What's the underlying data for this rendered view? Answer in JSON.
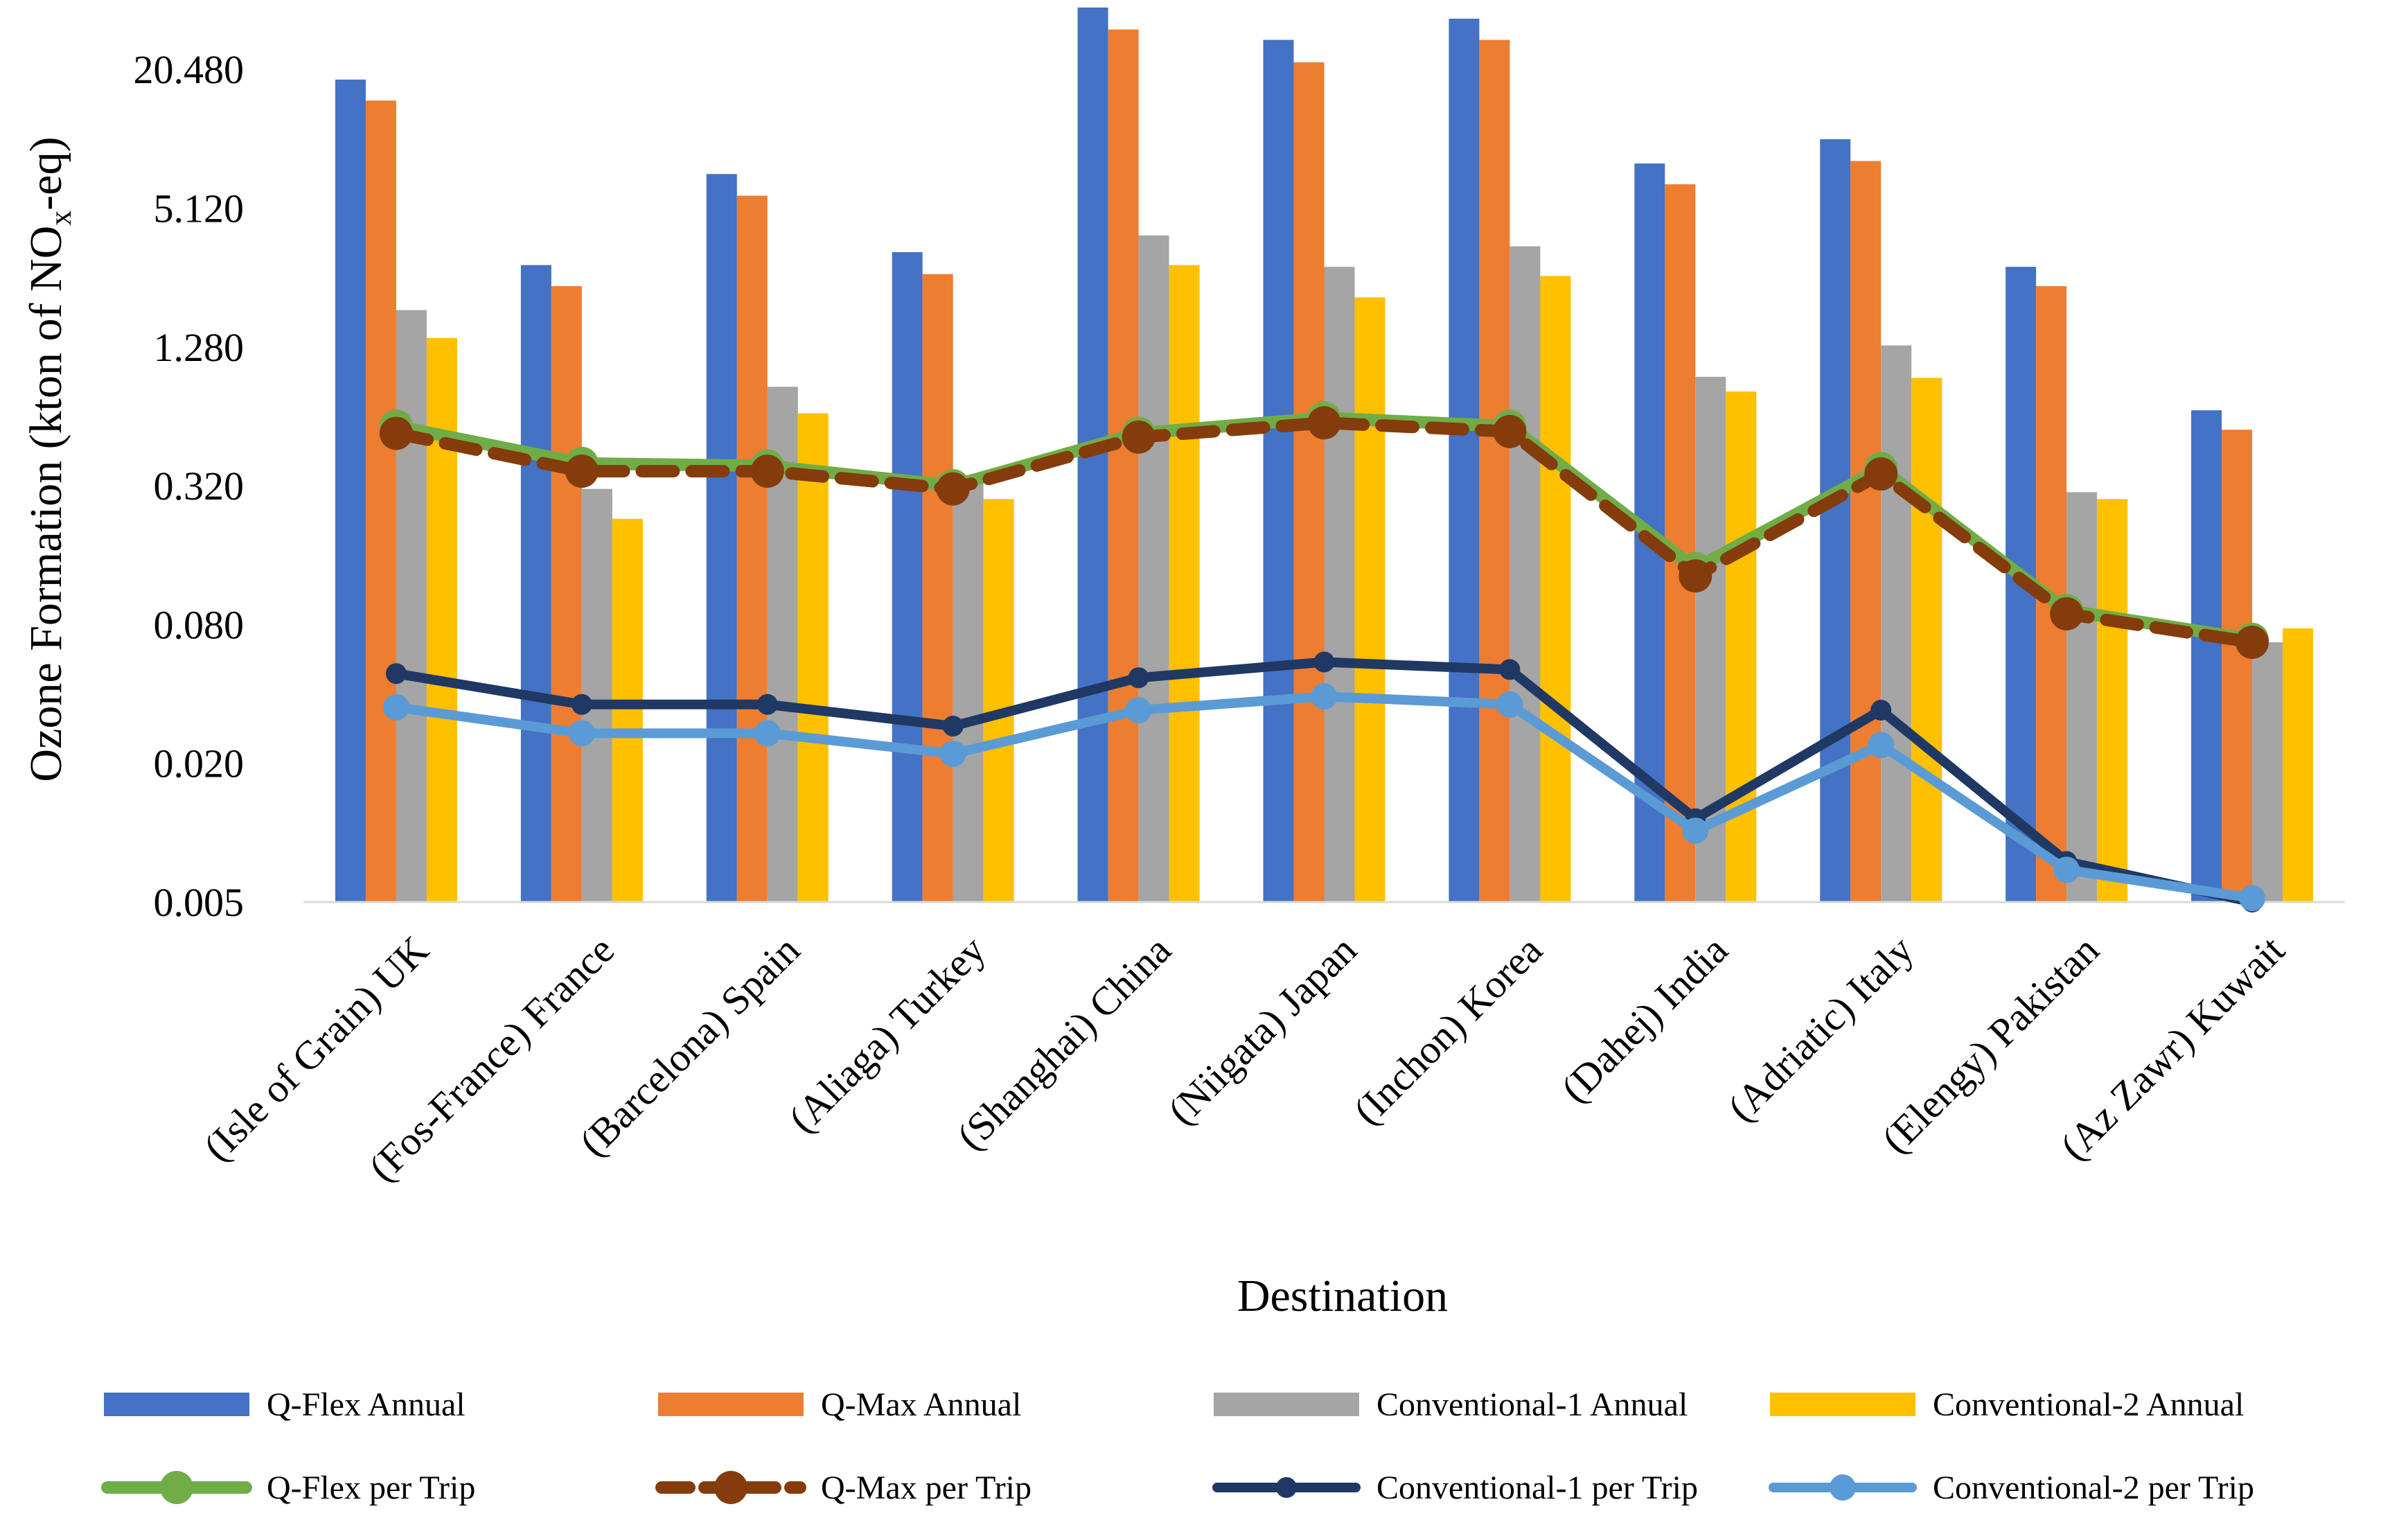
{
  "chart_data": {
    "type": "bar",
    "scale": "log2",
    "categories": [
      "(Isle of Grain) UK",
      "(Fos-France) France",
      "(Barcelona) Spain",
      "(Aliaga) Turkey",
      "(Shanghai) China",
      "(Niigata) Japan",
      "(Inchon) Korea",
      "(Dahej) India",
      "(Adriatic) Italy",
      "(Elengy) Pakistan",
      "(Az Zawr) Kuwait"
    ],
    "xlabel": "Destination",
    "ylabel": "Ozone Formation (kton of NOx-eq)",
    "ylabel_parts": {
      "pre": "Ozone Formation (kton of NO",
      "sub": "x",
      "post": "-eq)"
    },
    "ylim": [
      0.005,
      40.96
    ],
    "yticks": [
      0.005,
      0.02,
      0.08,
      0.32,
      1.28,
      5.12,
      20.48
    ],
    "ytick_labels": [
      "0.005",
      "0.020",
      "0.080",
      "0.320",
      "1.280",
      "5.120",
      "20.480"
    ],
    "bar_series": [
      {
        "name": "Q-Flex Annual",
        "color": "#4472C4",
        "values": [
          18.5,
          2.9,
          7.2,
          3.3,
          38.0,
          27.5,
          34.0,
          8.0,
          10.2,
          2.85,
          0.68
        ]
      },
      {
        "name": "Q-Max Annual",
        "color": "#ED7D31",
        "values": [
          15.0,
          2.35,
          5.8,
          2.65,
          30.5,
          22.0,
          27.5,
          6.5,
          8.2,
          2.35,
          0.56
        ]
      },
      {
        "name": "Conventional-1 Annual",
        "color": "#A5A5A5",
        "values": [
          1.85,
          0.31,
          0.86,
          0.34,
          3.9,
          2.85,
          3.5,
          0.95,
          1.3,
          0.3,
          0.067
        ]
      },
      {
        "name": "Conventional-2 Annual",
        "color": "#FFC000",
        "values": [
          1.4,
          0.23,
          0.66,
          0.28,
          2.9,
          2.1,
          2.6,
          0.82,
          0.94,
          0.28,
          0.077
        ]
      }
    ],
    "line_series": [
      {
        "name": "Q-Flex per Trip",
        "color": "#70AD47",
        "dashed": false,
        "marker": "large",
        "values": [
          0.58,
          0.4,
          0.39,
          0.32,
          0.54,
          0.63,
          0.58,
          0.14,
          0.38,
          0.092,
          0.069
        ]
      },
      {
        "name": "Q-Max per Trip",
        "color": "#843C0C",
        "dashed": true,
        "marker": "large",
        "values": [
          0.54,
          0.37,
          0.37,
          0.31,
          0.52,
          0.6,
          0.55,
          0.13,
          0.36,
          0.089,
          0.067
        ]
      },
      {
        "name": "Conventional-1 per Trip",
        "color": "#203864",
        "dashed": false,
        "marker": "small",
        "values": [
          0.049,
          0.036,
          0.036,
          0.029,
          0.047,
          0.055,
          0.051,
          0.0115,
          0.034,
          0.0075,
          0.0048
        ]
      },
      {
        "name": "Conventional-2 per Trip",
        "color": "#5B9BD5",
        "dashed": false,
        "marker": "medium",
        "values": [
          0.035,
          0.027,
          0.027,
          0.022,
          0.034,
          0.039,
          0.036,
          0.0102,
          0.024,
          0.0069,
          0.0052
        ]
      }
    ],
    "legend_position": "bottom"
  }
}
